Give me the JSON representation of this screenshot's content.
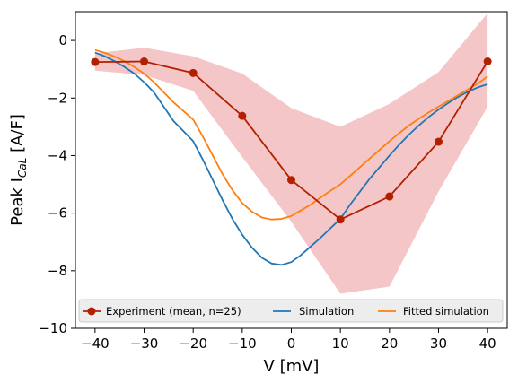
{
  "chart_data": {
    "type": "line",
    "title": "",
    "xlabel": "V [mV]",
    "ylabel_main": "Peak I",
    "ylabel_sub": "CaL",
    "ylabel_unit": " [A/F]",
    "xlim": [
      -44,
      44
    ],
    "ylim": [
      -10,
      1
    ],
    "xticks": [
      -40,
      -30,
      -20,
      -10,
      0,
      10,
      20,
      30,
      40
    ],
    "yticks": [
      0,
      -2,
      -4,
      -6,
      -8,
      -10
    ],
    "legend_position": "bottom",
    "band": {
      "color": "#f4c6c8",
      "x": [
        -40,
        -30,
        -20,
        -10,
        0,
        10,
        20,
        30,
        40
      ],
      "upper": [
        -0.45,
        -0.25,
        -0.55,
        -1.15,
        -2.35,
        -3.0,
        -2.2,
        -1.1,
        0.95
      ],
      "lower": [
        -1.05,
        -1.2,
        -1.75,
        -4.05,
        -6.3,
        -8.8,
        -8.55,
        -5.25,
        -2.3
      ]
    },
    "series": [
      {
        "name": "Experiment (mean, n=25)",
        "color": "#b22000",
        "marker": true,
        "x": [
          -40,
          -30,
          -20,
          -10,
          0,
          10,
          20,
          30,
          40
        ],
        "y": [
          -0.75,
          -0.73,
          -1.13,
          -2.62,
          -4.85,
          -6.22,
          -5.42,
          -3.52,
          -0.73
        ]
      },
      {
        "name": "Simulation",
        "color": "#1f77b4",
        "marker": false,
        "x": [
          -40,
          -38,
          -36,
          -34,
          -32,
          -30,
          -28,
          -26,
          -24,
          -22,
          -20,
          -18,
          -16,
          -14,
          -12,
          -10,
          -8,
          -6,
          -4,
          -2,
          0,
          2,
          4,
          6,
          8,
          10,
          12,
          14,
          16,
          18,
          20,
          22,
          24,
          26,
          28,
          30,
          32,
          34,
          36,
          38,
          40
        ],
        "y": [
          -0.42,
          -0.55,
          -0.72,
          -0.92,
          -1.15,
          -1.45,
          -1.8,
          -2.3,
          -2.8,
          -3.15,
          -3.5,
          -4.15,
          -4.85,
          -5.55,
          -6.2,
          -6.75,
          -7.2,
          -7.55,
          -7.75,
          -7.8,
          -7.7,
          -7.45,
          -7.15,
          -6.85,
          -6.52,
          -6.2,
          -5.7,
          -5.25,
          -4.8,
          -4.4,
          -4.0,
          -3.62,
          -3.27,
          -2.95,
          -2.66,
          -2.4,
          -2.17,
          -1.96,
          -1.78,
          -1.63,
          -1.52
        ]
      },
      {
        "name": "Fitted simulation",
        "color": "#ff7f0e",
        "marker": false,
        "x": [
          -40,
          -38,
          -36,
          -34,
          -32,
          -30,
          -28,
          -26,
          -24,
          -22,
          -20,
          -18,
          -16,
          -14,
          -12,
          -10,
          -8,
          -6,
          -4,
          -2,
          0,
          2,
          4,
          6,
          8,
          10,
          12,
          14,
          16,
          18,
          20,
          22,
          24,
          26,
          28,
          30,
          32,
          34,
          36,
          38,
          40
        ],
        "y": [
          -0.33,
          -0.43,
          -0.56,
          -0.72,
          -0.92,
          -1.15,
          -1.45,
          -1.8,
          -2.15,
          -2.45,
          -2.75,
          -3.35,
          -4.0,
          -4.65,
          -5.2,
          -5.65,
          -5.95,
          -6.15,
          -6.22,
          -6.2,
          -6.1,
          -5.9,
          -5.7,
          -5.45,
          -5.22,
          -5.0,
          -4.7,
          -4.4,
          -4.1,
          -3.8,
          -3.5,
          -3.22,
          -2.95,
          -2.72,
          -2.5,
          -2.3,
          -2.1,
          -1.9,
          -1.7,
          -1.5,
          -1.25
        ]
      }
    ]
  }
}
